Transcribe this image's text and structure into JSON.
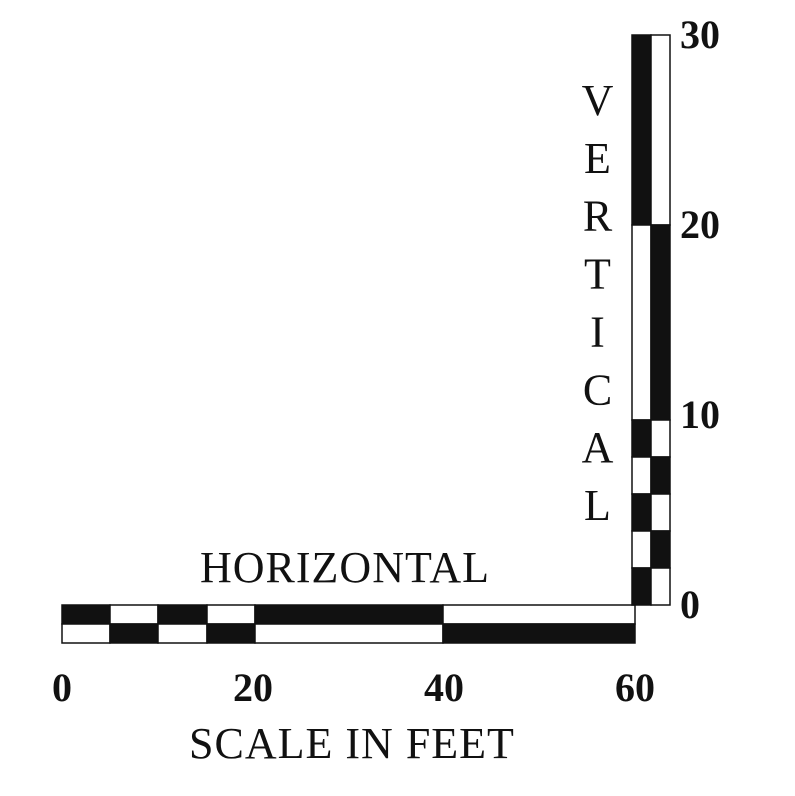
{
  "horizontal_label": "HORIZONTAL",
  "vertical_label": "VERTICAL",
  "horizontal_ticks": [
    0,
    20,
    40,
    60
  ],
  "vertical_ticks": [
    0,
    10,
    20,
    30
  ],
  "caption": "SCALE IN FEET"
}
